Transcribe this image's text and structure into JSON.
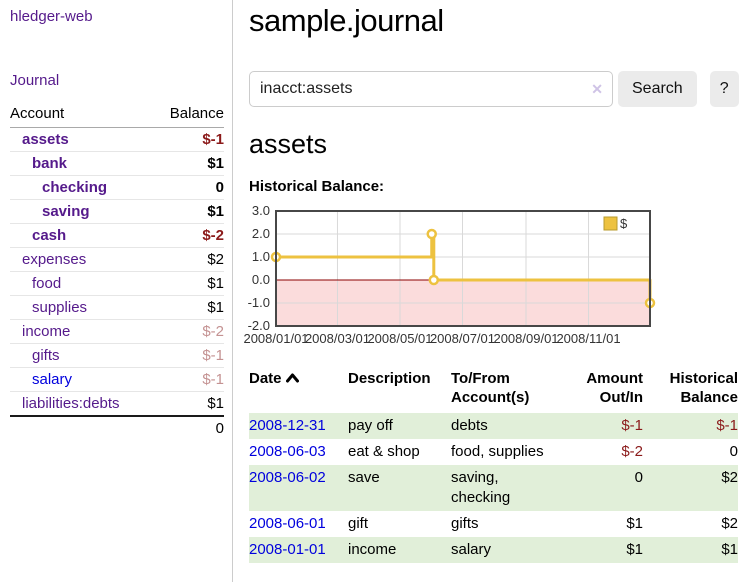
{
  "colors": {
    "purple": "#551a8b",
    "blue": "#0000dd",
    "neg": "#8b1a1a",
    "negpale": "#c49292",
    "stripe": "#e1efd9",
    "divider": "#cccccc",
    "inputborder": "#cccccc",
    "btnbg": "#ebebeb",
    "clearx": "#cfc3e6",
    "chart_line": "#edc240",
    "chart_negative_fill": "#fbdcdc",
    "chart_zero_line": "#8b0000",
    "chart_grid": "#d9d9d9",
    "chart_border": "#474747"
  },
  "sidebar": {
    "app_title": "hledger-web",
    "journal_link": "Journal",
    "table": {
      "col_account": "Account",
      "col_balance": "Balance",
      "rows": [
        {
          "account": "assets",
          "indent": 1,
          "bold": true,
          "link": "purple",
          "balance": "$-1",
          "balance_style": "neg"
        },
        {
          "account": "bank",
          "indent": 2,
          "bold": true,
          "link": "purple",
          "balance": "$1",
          "balance_style": ""
        },
        {
          "account": "checking",
          "indent": 3,
          "bold": true,
          "link": "purple",
          "balance": "0",
          "balance_style": ""
        },
        {
          "account": "saving",
          "indent": 3,
          "bold": true,
          "link": "purple",
          "balance": "$1",
          "balance_style": ""
        },
        {
          "account": "cash",
          "indent": 2,
          "bold": true,
          "link": "purple",
          "balance": "$-2",
          "balance_style": "neg"
        },
        {
          "account": "expenses",
          "indent": 1,
          "bold": false,
          "link": "purple",
          "balance": "$2",
          "balance_style": ""
        },
        {
          "account": "food",
          "indent": 2,
          "bold": false,
          "link": "purple",
          "balance": "$1",
          "balance_style": ""
        },
        {
          "account": "supplies",
          "indent": 2,
          "bold": false,
          "link": "purple",
          "balance": "$1",
          "balance_style": ""
        },
        {
          "account": "income",
          "indent": 1,
          "bold": false,
          "link": "purple",
          "balance": "$-2",
          "balance_style": "negpale"
        },
        {
          "account": "gifts",
          "indent": 2,
          "bold": false,
          "link": "purple",
          "balance": "$-1",
          "balance_style": "negpale"
        },
        {
          "account": "salary",
          "indent": 2,
          "bold": false,
          "link": "blue",
          "balance": "$-1",
          "balance_style": "negpale"
        },
        {
          "account": "liabilities:debts",
          "indent": 1,
          "bold": false,
          "link": "purple",
          "balance": "$1",
          "balance_style": ""
        }
      ],
      "total": "0"
    }
  },
  "main": {
    "title": "sample.journal",
    "search": {
      "value": "inacct:assets",
      "clear_icon": "✕",
      "button_label": "Search",
      "help_label": "?"
    },
    "account_heading": "assets",
    "chart_label": "Historical Balance:"
  },
  "chart_data": {
    "type": "line",
    "step": true,
    "title": "Historical Balance:",
    "series": [
      {
        "name": "$",
        "color": "#edc240",
        "points": [
          {
            "date": "2008-01-01",
            "value": 1
          },
          {
            "date": "2008-06-01",
            "value": 2
          },
          {
            "date": "2008-06-03",
            "value": 0
          },
          {
            "date": "2008-12-31",
            "value": -1
          }
        ]
      }
    ],
    "xrange": [
      "2008-01-01",
      "2008-12-31"
    ],
    "ylim": [
      -2,
      3
    ],
    "yticks": [
      "3.0",
      "2.0",
      "1.0",
      "0.0",
      "-1.0",
      "-2.0"
    ],
    "xticks": [
      "2008/01/01",
      "2008/03/01",
      "2008/05/01",
      "2008/07/01",
      "2008/09/01",
      "2008/11/01"
    ],
    "grid": true,
    "legend_position": "top-right",
    "negative_region_shaded": true
  },
  "register": {
    "header": {
      "date": "Date",
      "description": "Description",
      "tofrom": "To/From Account(s)",
      "amount": "Amount Out/In",
      "balance": "Historical Balance"
    },
    "rows": [
      {
        "date": "2008-12-31",
        "description": "pay off",
        "accounts": "debts",
        "amount": "$-1",
        "amount_neg": true,
        "balance": "$-1",
        "balance_neg": true
      },
      {
        "date": "2008-06-03",
        "description": "eat & shop",
        "accounts": "food, supplies",
        "amount": "$-2",
        "amount_neg": true,
        "balance": "0",
        "balance_neg": false
      },
      {
        "date": "2008-06-02",
        "description": "save",
        "accounts": "saving, checking",
        "amount": "0",
        "amount_neg": false,
        "balance": "$2",
        "balance_neg": false
      },
      {
        "date": "2008-06-01",
        "description": "gift",
        "accounts": "gifts",
        "amount": "$1",
        "amount_neg": false,
        "balance": "$2",
        "balance_neg": false
      },
      {
        "date": "2008-01-01",
        "description": "income",
        "accounts": "salary",
        "amount": "$1",
        "amount_neg": false,
        "balance": "$1",
        "balance_neg": false
      }
    ]
  }
}
